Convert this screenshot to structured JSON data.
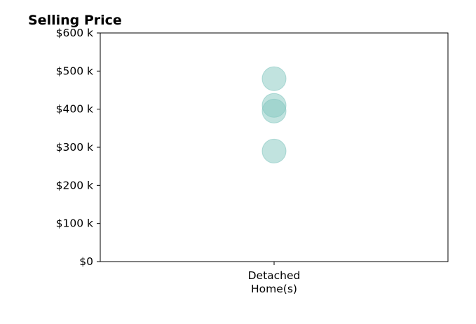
{
  "chart_data": {
    "type": "scatter",
    "title": "Selling Price",
    "categories": [
      [
        "Detached",
        "Home(s)"
      ]
    ],
    "series": [
      {
        "values": [
          {
            "category": 0,
            "y": 480000
          },
          {
            "category": 0,
            "y": 410000
          },
          {
            "category": 0,
            "y": 395000
          },
          {
            "category": 0,
            "y": 290000
          }
        ],
        "color": "#83c7c0",
        "alpha": 0.5
      }
    ],
    "ylim": [
      0,
      600000
    ],
    "yticks": [
      0,
      100000,
      200000,
      300000,
      400000,
      500000,
      600000
    ],
    "ytick_labels": [
      "$0",
      "$100 k",
      "$200 k",
      "$300 k",
      "$400 k",
      "$500 k",
      "$600 k"
    ],
    "xlabel": "",
    "ylabel": "",
    "grid": false,
    "legend": false
  }
}
